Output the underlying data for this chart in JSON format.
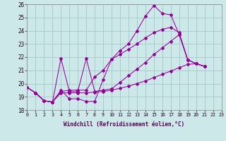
{
  "background_color": "#cce8e8",
  "grid_color": "#aacccc",
  "line_color": "#990099",
  "xlim": [
    0,
    23
  ],
  "ylim": [
    18,
    26
  ],
  "xticks": [
    0,
    1,
    2,
    3,
    4,
    5,
    6,
    7,
    8,
    9,
    10,
    11,
    12,
    13,
    14,
    15,
    16,
    17,
    18,
    19,
    20,
    21,
    22,
    23
  ],
  "yticks": [
    18,
    19,
    20,
    21,
    22,
    23,
    24,
    25,
    26
  ],
  "xlabel": "Windchill (Refroidissement éolien,°C)",
  "s1_x": [
    0,
    1,
    2,
    3,
    4,
    5,
    6,
    7,
    8,
    9,
    10,
    11,
    12,
    13,
    14,
    15,
    16,
    17,
    18,
    19,
    20,
    21
  ],
  "s1_y": [
    19.7,
    19.3,
    18.7,
    18.6,
    19.5,
    18.85,
    18.85,
    18.65,
    18.65,
    20.3,
    21.85,
    22.5,
    23.0,
    24.0,
    25.1,
    25.9,
    25.3,
    25.2,
    23.7,
    21.8,
    21.5,
    21.3
  ],
  "s2_x": [
    0,
    1,
    2,
    3,
    4,
    5,
    6,
    7,
    8,
    9,
    10,
    11,
    12,
    13,
    14,
    15,
    16,
    17,
    18,
    19,
    20,
    21
  ],
  "s2_y": [
    19.7,
    19.3,
    18.7,
    18.6,
    21.9,
    19.4,
    19.4,
    21.9,
    19.4,
    19.5,
    19.6,
    20.1,
    20.6,
    21.1,
    21.6,
    22.2,
    22.7,
    23.2,
    23.7,
    21.8,
    21.5,
    21.3
  ],
  "s3_x": [
    0,
    1,
    2,
    3,
    4,
    5,
    6,
    7,
    8,
    9,
    10,
    11,
    12,
    13,
    14,
    15,
    16,
    17,
    18,
    19,
    20,
    21
  ],
  "s3_y": [
    19.7,
    19.3,
    18.7,
    18.6,
    19.4,
    19.5,
    19.5,
    19.5,
    20.5,
    21.0,
    21.85,
    22.2,
    22.6,
    23.0,
    23.45,
    23.85,
    24.1,
    24.25,
    23.85,
    21.8,
    21.5,
    21.3
  ],
  "s4_x": [
    0,
    1,
    2,
    3,
    4,
    5,
    6,
    7,
    8,
    9,
    10,
    11,
    12,
    13,
    14,
    15,
    16,
    17,
    18,
    19,
    20,
    21
  ],
  "s4_y": [
    19.7,
    19.3,
    18.7,
    18.6,
    19.3,
    19.3,
    19.3,
    19.3,
    19.35,
    19.4,
    19.5,
    19.65,
    19.8,
    20.0,
    20.2,
    20.45,
    20.7,
    20.95,
    21.2,
    21.45,
    21.5,
    21.3
  ]
}
